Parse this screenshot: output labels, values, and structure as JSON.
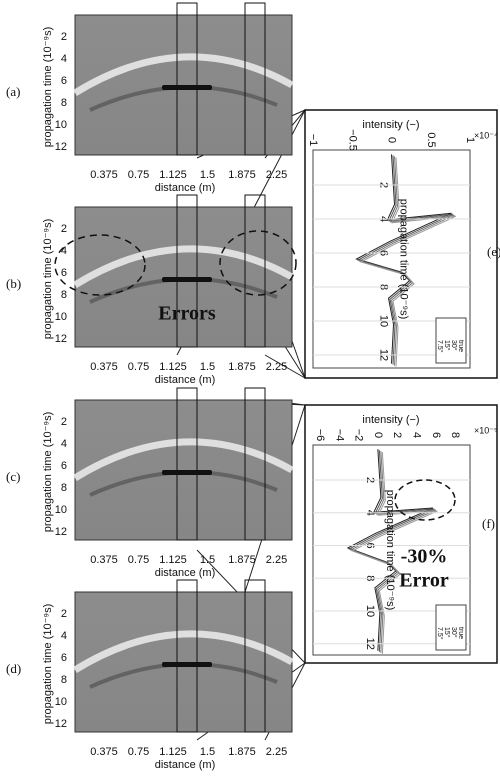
{
  "panels": [
    {
      "label": "(a)",
      "y_label": "propagation time (10⁻⁹s)",
      "x_label": "distance (m)",
      "y_ticks": [
        "2",
        "4",
        "6",
        "8",
        "10",
        "12"
      ],
      "x_ticks": [
        "0.375",
        "0.75",
        "1.125",
        "1.5",
        "1.875",
        "2.25"
      ]
    },
    {
      "label": "(b)",
      "y_label": "propagation time (10⁻⁹s)",
      "x_label": "distance (m)",
      "y_ticks": [
        "2",
        "4",
        "6",
        "8",
        "10",
        "12"
      ],
      "x_ticks": [
        "0.375",
        "0.75",
        "1.125",
        "1.5",
        "1.875",
        "2.25"
      ],
      "annotation": "Errors"
    },
    {
      "label": "(c)",
      "y_label": "propagation time (10⁻⁹s)",
      "x_label": "distance (m)",
      "y_ticks": [
        "2",
        "4",
        "6",
        "8",
        "10",
        "12"
      ],
      "x_ticks": [
        "0.375",
        "0.75",
        "1.125",
        "1.5",
        "1.875",
        "2.25"
      ]
    },
    {
      "label": "(d)",
      "y_label": "propagation time (10⁻⁹s)",
      "x_label": "distance (m)",
      "y_ticks": [
        "2",
        "4",
        "6",
        "8",
        "10",
        "12"
      ],
      "x_ticks": [
        "0.375",
        "0.75",
        "1.125",
        "1.5",
        "1.875",
        "2.25"
      ]
    }
  ],
  "insets": [
    {
      "label": "(e)",
      "x_label": "intensity (−)",
      "x_ticks": [
        "−1",
        "−0.5",
        "0",
        "0.5",
        "1"
      ],
      "scale": "×10⁻⁴",
      "y_label": "propagation time (10⁻⁹s)",
      "y_ticks": [
        "2",
        "4",
        "6",
        "8",
        "10",
        "12"
      ],
      "legend": [
        "true",
        "30°",
        "15°",
        "7.5°"
      ]
    },
    {
      "label": "(f)",
      "x_label": "intensity (−)",
      "x_ticks": [
        "−6",
        "−4",
        "−2",
        "0",
        "2",
        "4",
        "6",
        "8"
      ],
      "scale": "×10⁻⁵",
      "y_label": "propagation time (10⁻⁹s)",
      "y_ticks": [
        "2",
        "4",
        "6",
        "8",
        "10",
        "12"
      ],
      "legend": [
        "true",
        "30°",
        "15°",
        "7.5°"
      ],
      "annotation": [
        "-30%",
        "Error"
      ]
    }
  ]
}
